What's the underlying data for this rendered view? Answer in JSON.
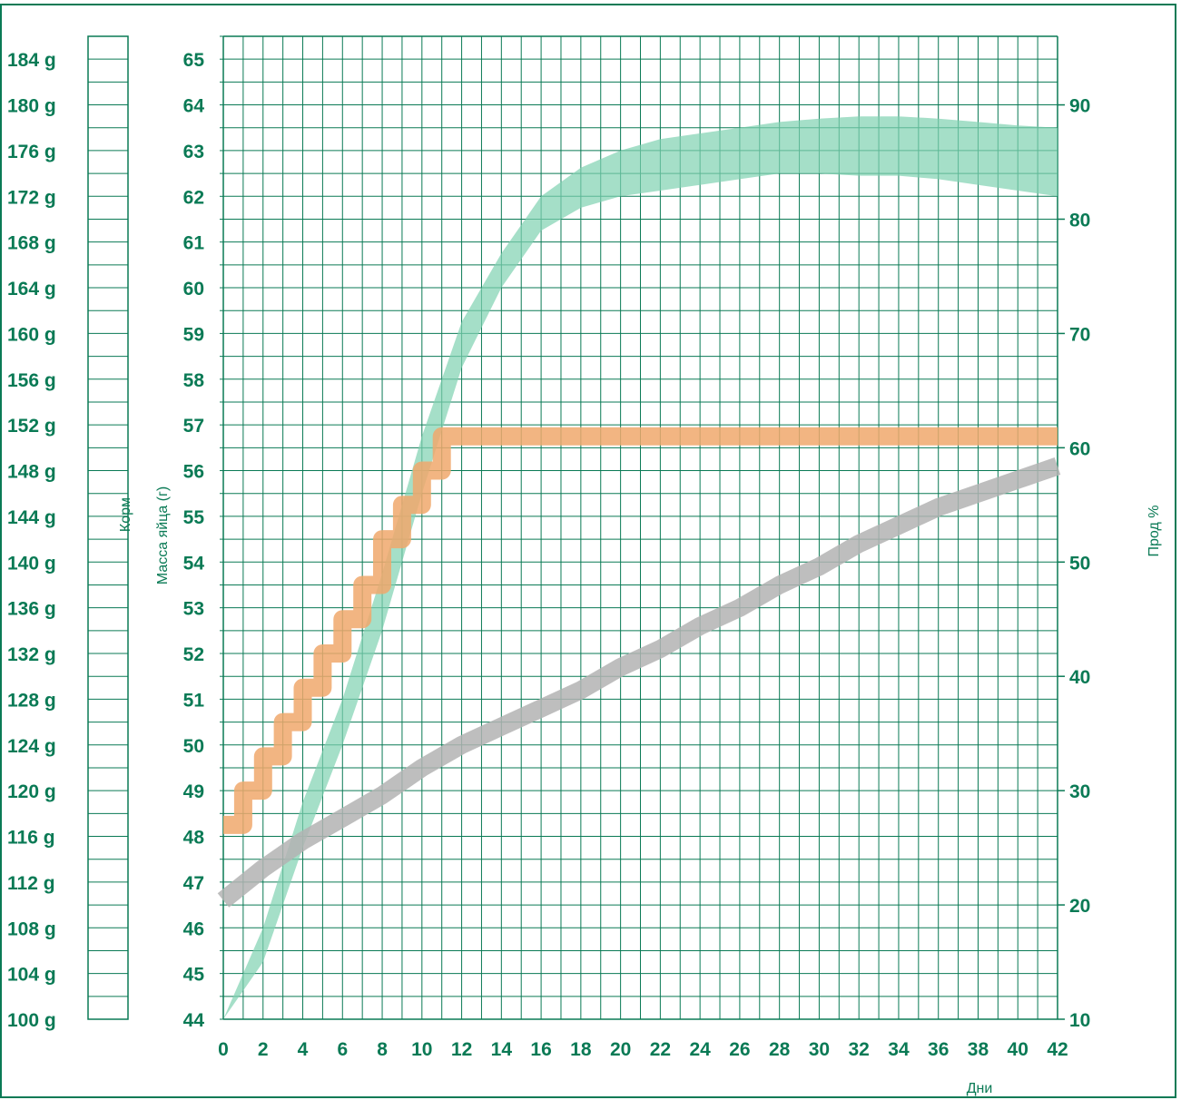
{
  "colors": {
    "frame": "#0a7a55",
    "grid": "#0a7a55",
    "text": "#0a7a55",
    "productivity_band": "#7fd1b0",
    "egg_mass_band": "#b3b3b3",
    "feed_steps": "#f0a86c"
  },
  "chart_data": {
    "type": "line",
    "xlabel": "Дни",
    "x_ticks": [
      "0",
      "2",
      "4",
      "6",
      "8",
      "10",
      "12",
      "14",
      "16",
      "18",
      "20",
      "22",
      "24",
      "26",
      "28",
      "30",
      "32",
      "34",
      "36",
      "38",
      "40",
      "42"
    ],
    "xlim": [
      0,
      42
    ],
    "axes": {
      "feed": {
        "label": "Корм",
        "min": 100,
        "max": 186,
        "ticks": [
          "184 g",
          "180 g",
          "176 g",
          "172 g",
          "168 g",
          "164 g",
          "160 g",
          "156 g",
          "152 g",
          "148 g",
          "144 g",
          "140 g",
          "136 g",
          "132 g",
          "128 g",
          "124 g",
          "120 g",
          "116 g",
          "112 g",
          "108 g",
          "104 g",
          "100 g"
        ]
      },
      "egg_mass": {
        "label": "Масса яйца (г)",
        "min": 44,
        "max": 65.5,
        "ticks": [
          "65",
          "64",
          "63",
          "62",
          "61",
          "60",
          "59",
          "58",
          "57",
          "56",
          "55",
          "54",
          "53",
          "52",
          "51",
          "50",
          "49",
          "48",
          "47",
          "46",
          "45",
          "44"
        ]
      },
      "productivity": {
        "label": "Прод %",
        "min": 10,
        "max": 96,
        "ticks": [
          "90",
          "80",
          "70",
          "60",
          "50",
          "40",
          "30",
          "20",
          "10"
        ]
      }
    },
    "series": [
      {
        "axis": "productivity",
        "kind": "band",
        "x": [
          0,
          2,
          4,
          6,
          8,
          10,
          12,
          14,
          16,
          18,
          20,
          22,
          24,
          26,
          28,
          30,
          32,
          34,
          36,
          38,
          40,
          42
        ],
        "low": [
          10,
          15,
          25,
          34,
          44,
          56,
          67,
          74,
          79,
          81,
          82,
          82.5,
          83,
          83.5,
          84,
          84,
          83.8,
          83.8,
          83.5,
          83,
          82.5,
          82
        ],
        "high": [
          10,
          18,
          29,
          38,
          49,
          61,
          71,
          77,
          82,
          84.5,
          86,
          87,
          87.5,
          88,
          88.5,
          88.8,
          89,
          89,
          88.8,
          88.5,
          88.2,
          88
        ]
      },
      {
        "axis": "egg_mass",
        "kind": "thick_line",
        "x": [
          0,
          2,
          4,
          6,
          8,
          10,
          12,
          14,
          16,
          18,
          20,
          22,
          24,
          26,
          28,
          30,
          32,
          34,
          36,
          38,
          40,
          42
        ],
        "values": [
          46.6,
          47.3,
          47.9,
          48.4,
          48.9,
          49.5,
          50.0,
          50.4,
          50.8,
          51.2,
          51.7,
          52.1,
          52.6,
          53.0,
          53.5,
          53.9,
          54.4,
          54.8,
          55.2,
          55.5,
          55.8,
          56.1
        ]
      },
      {
        "axis": "feed",
        "kind": "step",
        "x": [
          0,
          1,
          2,
          3,
          4,
          5,
          6,
          7,
          8,
          9,
          10,
          11,
          42
        ],
        "values": [
          117,
          120,
          123,
          126,
          129,
          132,
          135,
          138,
          142,
          145,
          148,
          151,
          151
        ]
      }
    ]
  }
}
